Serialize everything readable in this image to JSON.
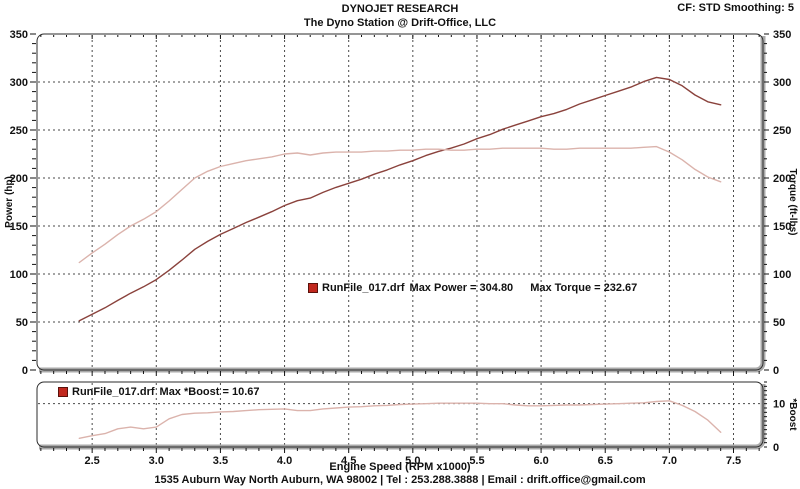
{
  "header": {
    "title": "DYNOJET RESEARCH",
    "subtitle": "The Dyno Station @ Drift-Office, LLC",
    "cf_smoothing": "CF: STD  Smoothing: 5"
  },
  "footer": {
    "text": "1535 Auburn Way North Auburn, WA 98002 | Tel : 253.288.3888 | Email : drift.office@gmail.com"
  },
  "colors": {
    "power": "#8a423c",
    "torque": "#dbb3ac",
    "boost": "#dbb3ac",
    "legend_marker": "#c1281e",
    "grid": "#4a4a4a",
    "frame_band": "#a9a9a9",
    "frame_line": "#2b2b2b",
    "text": "#111111"
  },
  "chart_data": [
    {
      "type": "line",
      "name": "power-torque-chart",
      "ylabel_left": "Power (hp)",
      "ylabel_right": "Torque (ft-lbs)",
      "xlim": [
        2.07,
        7.73
      ],
      "ylim": [
        0,
        350
      ],
      "x_major_ticks": [
        2.5,
        3.0,
        3.5,
        4.0,
        4.5,
        5.0,
        5.5,
        6.0,
        6.5,
        7.0,
        7.5
      ],
      "x_minor_step": 0.1,
      "y_major_ticks": [
        0,
        50,
        100,
        150,
        200,
        250,
        300,
        350
      ],
      "y_minor_step": 10,
      "legend": {
        "file": "RunFile_017.drf",
        "max_power_label": "Max Power = 304.80",
        "max_torque_label": "Max Torque = 232.67"
      },
      "max_power": 304.8,
      "max_torque": 232.67,
      "x": [
        2.4,
        2.5,
        2.6,
        2.7,
        2.8,
        2.9,
        3.0,
        3.1,
        3.2,
        3.3,
        3.4,
        3.5,
        3.6,
        3.7,
        3.8,
        3.9,
        4.0,
        4.1,
        4.2,
        4.3,
        4.4,
        4.5,
        4.6,
        4.7,
        4.8,
        4.9,
        5.0,
        5.1,
        5.2,
        5.3,
        5.4,
        5.5,
        5.6,
        5.7,
        5.8,
        5.9,
        6.0,
        6.1,
        6.2,
        6.3,
        6.4,
        6.5,
        6.6,
        6.7,
        6.8,
        6.9,
        7.0,
        7.1,
        7.2,
        7.3,
        7.4
      ],
      "series": [
        {
          "name": "Power (hp)",
          "color": "power",
          "values": [
            51.2,
            58.1,
            64.8,
            72.5,
            80.0,
            86.7,
            94.2,
            103.9,
            114.5,
            125.7,
            134.0,
            141.3,
            147.4,
            153.6,
            159.2,
            164.9,
            171.4,
            176.4,
            179.1,
            185.0,
            190.2,
            194.5,
            198.8,
            204.0,
            208.4,
            213.6,
            218.0,
            223.3,
            227.7,
            231.1,
            235.4,
            240.9,
            245.2,
            250.7,
            255.1,
            259.5,
            263.9,
            267.1,
            271.5,
            277.1,
            281.5,
            285.9,
            290.3,
            294.7,
            300.4,
            304.8,
            302.6,
            296.0,
            286.5,
            279.4,
            276.2
          ]
        },
        {
          "name": "Torque (ft-lbs)",
          "color": "torque",
          "values": [
            112,
            122,
            131,
            141,
            150,
            157,
            165,
            176,
            188,
            200,
            207,
            212,
            215,
            218,
            220,
            222,
            225,
            226,
            224,
            226,
            227,
            227,
            227,
            228,
            228,
            229,
            229,
            230,
            230,
            229,
            229,
            230,
            230,
            231,
            231,
            231,
            231,
            230,
            230,
            231,
            231,
            231,
            231,
            231,
            232,
            232.7,
            227,
            219,
            209,
            201,
            196
          ]
        }
      ]
    },
    {
      "type": "line",
      "name": "boost-chart",
      "xlabel": "Engine Speed (RPM x1000)",
      "ylabel_right": "*Boost",
      "xlim": [
        2.07,
        7.73
      ],
      "ylim": [
        0,
        15
      ],
      "x_major_ticks": [
        2.5,
        3.0,
        3.5,
        4.0,
        4.5,
        5.0,
        5.5,
        6.0,
        6.5,
        7.0,
        7.5
      ],
      "x_tick_labels": [
        "2.5",
        "3.0",
        "3.5",
        "4.0",
        "4.5",
        "5.0",
        "5.5",
        "6.0",
        "6.5",
        "7.0",
        "7.5"
      ],
      "x_minor_step": 0.1,
      "y_gridlines": [
        10
      ],
      "y_tick_labels": [
        {
          "value": 10,
          "label": "10"
        },
        {
          "value": 0,
          "label": "0"
        }
      ],
      "y_minor_step": 1,
      "legend": {
        "file": "RunFile_017.drf",
        "max_boost_label": "Max *Boost = 10.67"
      },
      "max_boost": 10.67,
      "x": [
        2.4,
        2.5,
        2.6,
        2.7,
        2.8,
        2.9,
        3.0,
        3.1,
        3.2,
        3.3,
        3.4,
        3.5,
        3.6,
        3.7,
        3.8,
        3.9,
        4.0,
        4.1,
        4.2,
        4.3,
        4.4,
        4.5,
        4.6,
        4.7,
        4.8,
        4.9,
        5.0,
        5.1,
        5.2,
        5.3,
        5.4,
        5.5,
        5.6,
        5.7,
        5.8,
        5.9,
        6.0,
        6.1,
        6.2,
        6.3,
        6.4,
        6.5,
        6.6,
        6.7,
        6.8,
        6.9,
        7.0,
        7.1,
        7.2,
        7.3,
        7.4
      ],
      "series": [
        {
          "name": "*Boost",
          "color": "boost",
          "values": [
            2.0,
            2.6,
            3.1,
            4.2,
            4.6,
            4.2,
            4.6,
            6.5,
            7.5,
            7.8,
            7.9,
            8.1,
            8.2,
            8.4,
            8.6,
            8.7,
            8.8,
            8.4,
            8.4,
            8.8,
            9.0,
            9.2,
            9.3,
            9.5,
            9.6,
            9.8,
            9.9,
            10.0,
            10.1,
            10.1,
            10.1,
            10.1,
            10.0,
            10.0,
            9.7,
            9.5,
            9.5,
            9.6,
            9.7,
            9.7,
            9.8,
            9.9,
            10.0,
            10.1,
            10.2,
            10.5,
            10.67,
            9.6,
            8.2,
            6.2,
            3.4
          ]
        }
      ]
    }
  ]
}
